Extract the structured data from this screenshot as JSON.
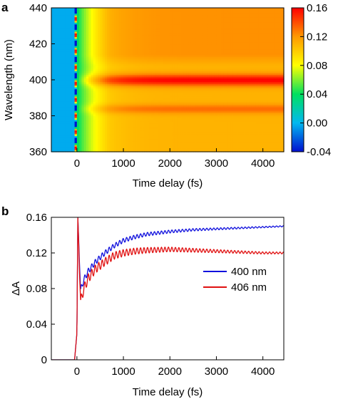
{
  "chart_data": [
    {
      "panel": "a",
      "type": "heatmap",
      "xlabel": "Time delay (fs)",
      "ylabel": "Wavelength (nm)",
      "xlim": [
        -550,
        4450
      ],
      "ylim": [
        360,
        440
      ],
      "xticks": [
        0,
        1000,
        2000,
        3000,
        4000
      ],
      "yticks": [
        360,
        380,
        400,
        420,
        440
      ],
      "colorbar": {
        "range": [
          -0.04,
          0.16
        ],
        "ticks": [
          "0.16",
          "0.12",
          "0.08",
          "0.04",
          "0.00",
          "-0.04"
        ],
        "colors": [
          "#0010d0",
          "#00b8f0",
          "#00e060",
          "#ffff00",
          "#ff9900",
          "#ff0000"
        ]
      },
      "features": {
        "pre_time_zero_value": -0.003,
        "strong_band_nm": 400,
        "secondary_band_nm": 384,
        "upper_plateau_value": 0.12
      }
    },
    {
      "panel": "b",
      "type": "line",
      "xlabel": "Time delay (fs)",
      "ylabel": "ΔA",
      "xlim": [
        -550,
        4450
      ],
      "ylim": [
        0,
        0.16
      ],
      "xticks": [
        0,
        1000,
        2000,
        3000,
        4000
      ],
      "yticks": [
        "0",
        "0.04",
        "0.08",
        "0.12",
        "0.16"
      ],
      "legend_position": "center-right",
      "series": [
        {
          "name": "400 nm",
          "color": "#1010dd",
          "x": [
            -550,
            -50,
            0,
            20,
            80,
            150,
            250,
            400,
            600,
            800,
            1000,
            1250,
            1500,
            2000,
            2500,
            3000,
            3500,
            4000,
            4450
          ],
          "y": [
            0.0,
            0.0,
            0.03,
            0.16,
            0.078,
            0.09,
            0.1,
            0.11,
            0.12,
            0.128,
            0.134,
            0.138,
            0.141,
            0.144,
            0.146,
            0.147,
            0.148,
            0.149,
            0.15
          ]
        },
        {
          "name": "406 nm",
          "color": "#e01010",
          "x": [
            -550,
            -50,
            0,
            20,
            80,
            150,
            250,
            400,
            600,
            800,
            1000,
            1250,
            1500,
            2000,
            2500,
            3000,
            3500,
            4000,
            4450
          ],
          "y": [
            0.0,
            0.0,
            0.03,
            0.16,
            0.065,
            0.08,
            0.092,
            0.102,
            0.11,
            0.117,
            0.12,
            0.122,
            0.123,
            0.124,
            0.123,
            0.122,
            0.121,
            0.12,
            0.12
          ]
        }
      ]
    }
  ]
}
